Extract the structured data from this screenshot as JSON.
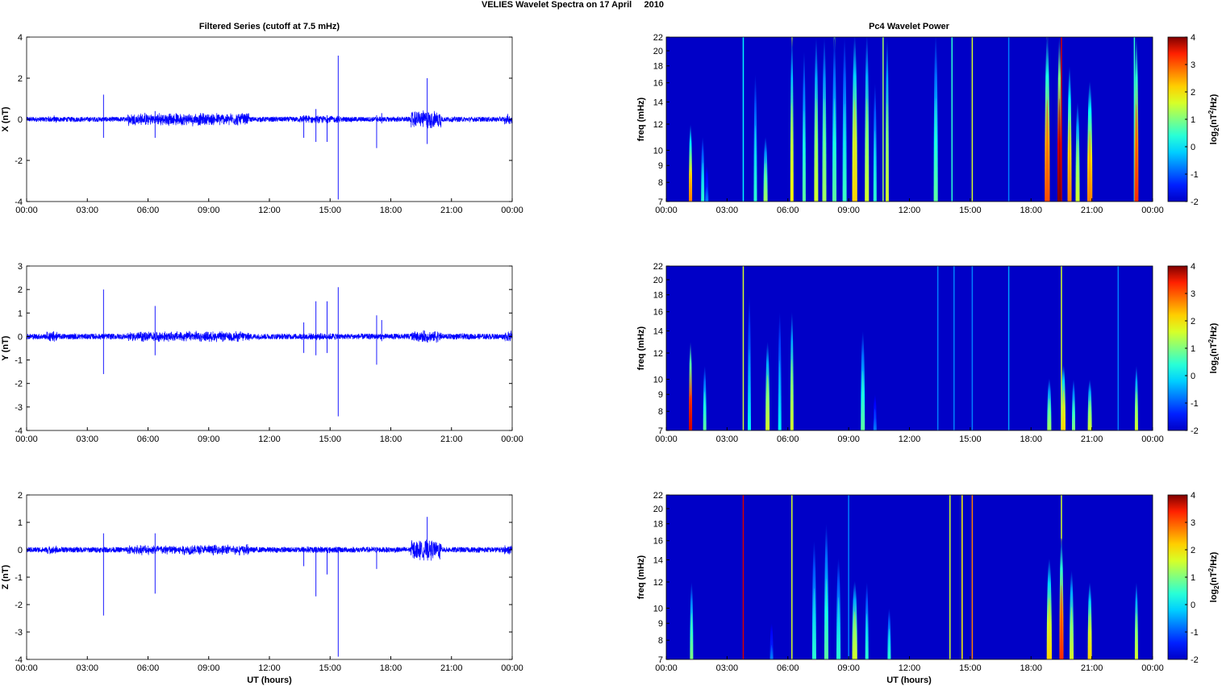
{
  "figure_title": "VELIES Wavelet Spectra on 17 April     2010",
  "left_column_title": "Filtered Series (cutoff at 7.5 mHz)",
  "right_column_title": "Pc4 Wavelet Power",
  "xlabel": "UT (hours)",
  "time_ticks": [
    "00:00",
    "03:00",
    "06:00",
    "09:00",
    "12:00",
    "15:00",
    "18:00",
    "21:00",
    "00:00"
  ],
  "colors": {
    "trace": "#0000ff",
    "axis": "#000000"
  },
  "chart_data": [
    {
      "type": "line",
      "name": "X",
      "ylabel": "X (nT)",
      "ylim": [
        -4,
        4
      ],
      "yticks": [
        -4,
        -2,
        0,
        2,
        4
      ],
      "xlim_hours": [
        0,
        24
      ],
      "noise_amplitude": 0.12,
      "active_intervals": [
        [
          1,
          1.5,
          0.15
        ],
        [
          5,
          11,
          0.25
        ],
        [
          13.5,
          15.5,
          0.15
        ],
        [
          19,
          20.5,
          0.35
        ],
        [
          23.6,
          24,
          0.2
        ]
      ],
      "spikes": [
        [
          3.8,
          1.2,
          -0.9
        ],
        [
          6.35,
          0.4,
          -0.9
        ],
        [
          13.7,
          0.2,
          -0.9
        ],
        [
          14.3,
          0.5,
          -1.1
        ],
        [
          14.85,
          0.2,
          -1.1
        ],
        [
          15.4,
          3.1,
          -3.9
        ],
        [
          17.3,
          0.2,
          -1.4
        ],
        [
          17.55,
          0.3,
          -0.2
        ],
        [
          19.8,
          2.0,
          -1.2
        ]
      ]
    },
    {
      "type": "line",
      "name": "Y",
      "ylabel": "Y (nT)",
      "ylim": [
        -4,
        3
      ],
      "yticks": [
        -4,
        -3,
        -2,
        -1,
        0,
        1,
        2,
        3
      ],
      "xlim_hours": [
        0,
        24
      ],
      "noise_amplitude": 0.12,
      "active_intervals": [
        [
          1,
          1.5,
          0.2
        ],
        [
          5,
          11,
          0.18
        ],
        [
          13.5,
          15.5,
          0.12
        ],
        [
          19,
          20.5,
          0.2
        ],
        [
          23.6,
          24,
          0.2
        ]
      ],
      "spikes": [
        [
          3.8,
          2.0,
          -1.6
        ],
        [
          6.35,
          1.3,
          -0.8
        ],
        [
          13.7,
          0.6,
          -0.7
        ],
        [
          14.3,
          1.5,
          -0.8
        ],
        [
          14.85,
          1.5,
          -0.7
        ],
        [
          15.4,
          2.1,
          -3.4
        ],
        [
          17.3,
          0.9,
          -1.2
        ],
        [
          17.55,
          0.7,
          -0.2
        ]
      ]
    },
    {
      "type": "line",
      "name": "Z",
      "ylabel": "Z (nT)",
      "ylim": [
        -4,
        2
      ],
      "yticks": [
        -4,
        -3,
        -2,
        -1,
        0,
        1,
        2
      ],
      "xlim_hours": [
        0,
        24
      ],
      "noise_amplitude": 0.1,
      "active_intervals": [
        [
          1,
          1.5,
          0.12
        ],
        [
          5,
          11,
          0.15
        ],
        [
          13.5,
          15.5,
          0.1
        ],
        [
          19,
          20.5,
          0.3
        ],
        [
          23.6,
          24,
          0.15
        ]
      ],
      "spikes": [
        [
          3.8,
          0.6,
          -2.4
        ],
        [
          6.35,
          0.6,
          -1.6
        ],
        [
          13.7,
          0.1,
          -0.6
        ],
        [
          14.3,
          0.1,
          -1.7
        ],
        [
          14.85,
          0.1,
          -0.9
        ],
        [
          15.4,
          0.1,
          -3.9
        ],
        [
          17.3,
          0.1,
          -0.7
        ],
        [
          19.8,
          1.2,
          -0.3
        ]
      ]
    },
    {
      "type": "heatmap",
      "name": "X power",
      "ylabel": "freq (mHz)",
      "ylim": [
        7,
        22
      ],
      "yscale": "log",
      "yticks": [
        7,
        8,
        9,
        10,
        12,
        14,
        16,
        18,
        20,
        22
      ],
      "clim": [
        -2,
        4
      ],
      "cbar_ticks": [
        -2,
        -1,
        0,
        1,
        2,
        3,
        4
      ],
      "cbar_label": "log2(nT2/Hz)",
      "background_level": -2,
      "events": [
        [
          1.2,
          0.12,
          12,
          2.5
        ],
        [
          1.8,
          0.1,
          11,
          0.5
        ],
        [
          2.0,
          0.08,
          9,
          -0.5
        ],
        [
          4.4,
          0.08,
          17,
          0.5
        ],
        [
          4.9,
          0.2,
          11,
          1.2
        ],
        [
          6.2,
          0.15,
          22,
          1.8
        ],
        [
          6.8,
          0.15,
          20,
          0.8
        ],
        [
          7.4,
          0.2,
          22,
          1.5
        ],
        [
          7.8,
          0.2,
          22,
          1.2
        ],
        [
          8.3,
          0.2,
          22,
          0.8
        ],
        [
          8.8,
          0.2,
          22,
          0.6
        ],
        [
          9.3,
          0.25,
          22,
          2.0
        ],
        [
          9.9,
          0.2,
          22,
          1.5
        ],
        [
          10.3,
          0.15,
          16,
          0.5
        ],
        [
          10.9,
          0.15,
          22,
          1.5
        ],
        [
          13.3,
          0.2,
          22,
          0.8
        ],
        [
          18.8,
          0.25,
          22,
          2.8
        ],
        [
          19.4,
          0.2,
          22,
          4.0
        ],
        [
          19.9,
          0.2,
          18,
          2.5
        ],
        [
          20.3,
          0.2,
          14,
          1.5
        ],
        [
          20.9,
          0.25,
          16,
          2.5
        ],
        [
          23.2,
          0.2,
          22,
          3.0
        ]
      ],
      "lines": [
        [
          3.8,
          0.2
        ],
        [
          6.2,
          1.5
        ],
        [
          8.3,
          1
        ],
        [
          10.7,
          1.2
        ],
        [
          14.1,
          0.5
        ],
        [
          15.1,
          1.5
        ],
        [
          16.9,
          -0.5
        ],
        [
          18.8,
          1.5
        ],
        [
          19.5,
          3.5
        ],
        [
          23.1,
          0.5
        ]
      ]
    },
    {
      "type": "heatmap",
      "name": "Y power",
      "ylabel": "freq (mHz)",
      "ylim": [
        7,
        22
      ],
      "yscale": "log",
      "yticks": [
        7,
        8,
        9,
        10,
        12,
        14,
        16,
        18,
        20,
        22
      ],
      "clim": [
        -2,
        4
      ],
      "cbar_ticks": [
        -2,
        -1,
        0,
        1,
        2,
        3,
        4
      ],
      "cbar_label": "log2(nT2/Hz)",
      "background_level": -2,
      "events": [
        [
          1.2,
          0.15,
          13,
          3.5
        ],
        [
          1.9,
          0.12,
          11,
          0.8
        ],
        [
          4.1,
          0.1,
          18,
          0.2
        ],
        [
          5.0,
          0.2,
          13,
          1.5
        ],
        [
          5.6,
          0.12,
          16,
          0.2
        ],
        [
          6.2,
          0.15,
          16,
          1.5
        ],
        [
          9.7,
          0.2,
          14,
          0.8
        ],
        [
          10.3,
          0.1,
          9,
          -0.5
        ],
        [
          18.9,
          0.2,
          10,
          1.2
        ],
        [
          19.6,
          0.2,
          11,
          2.0
        ],
        [
          20.1,
          0.15,
          10,
          1.0
        ],
        [
          20.9,
          0.2,
          10,
          1.5
        ],
        [
          23.2,
          0.15,
          11,
          1.5
        ]
      ],
      "lines": [
        [
          3.8,
          1.5
        ],
        [
          13.4,
          -0.5
        ],
        [
          14.2,
          -0.5
        ],
        [
          15.1,
          -0.5
        ],
        [
          16.9,
          -0.3
        ],
        [
          19.5,
          1.5
        ],
        [
          22.3,
          -0.5
        ]
      ]
    },
    {
      "type": "heatmap",
      "name": "Z power",
      "ylabel": "freq (mHz)",
      "ylim": [
        7,
        22
      ],
      "yscale": "log",
      "yticks": [
        7,
        8,
        9,
        10,
        12,
        14,
        16,
        18,
        20,
        22
      ],
      "clim": [
        -2,
        4
      ],
      "cbar_ticks": [
        -2,
        -1,
        0,
        1,
        2,
        3,
        4
      ],
      "cbar_label": "log2(nT2/Hz)",
      "background_level": -2,
      "events": [
        [
          1.25,
          0.1,
          12,
          1.0
        ],
        [
          5.2,
          0.1,
          9,
          -0.5
        ],
        [
          7.3,
          0.2,
          16,
          0.5
        ],
        [
          7.9,
          0.2,
          18,
          0.8
        ],
        [
          8.5,
          0.2,
          14,
          0.5
        ],
        [
          9.3,
          0.25,
          12,
          1.5
        ],
        [
          9.9,
          0.15,
          12,
          0.5
        ],
        [
          11.0,
          0.12,
          10,
          0.5
        ],
        [
          18.9,
          0.25,
          14,
          2.0
        ],
        [
          19.5,
          0.2,
          16,
          3.0
        ],
        [
          20.0,
          0.2,
          13,
          1.5
        ],
        [
          20.9,
          0.2,
          12,
          2.0
        ],
        [
          23.2,
          0.15,
          12,
          1.5
        ]
      ],
      "lines": [
        [
          3.8,
          3.5
        ],
        [
          6.2,
          1.5
        ],
        [
          14.0,
          1.5
        ],
        [
          14.6,
          1.8
        ],
        [
          15.1,
          2.5
        ],
        [
          19.5,
          1.5
        ],
        [
          9.0,
          -0.5
        ]
      ]
    }
  ]
}
